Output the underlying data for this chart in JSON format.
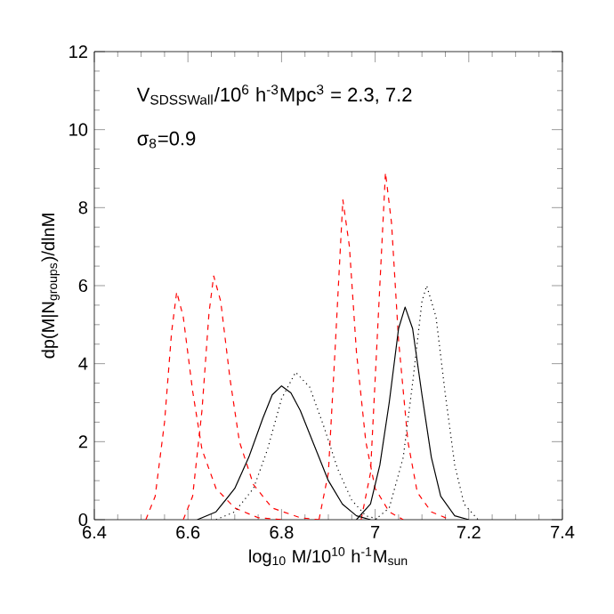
{
  "chart_data": {
    "type": "line",
    "xlabel": "log$_{10}$ M/10$^{10}$ h$^{-1}$M$_{sun}$",
    "ylabel": "dp(M|N$_{groups}$)/dlnM",
    "annotations": [
      "V$_{SDSSWall}$/10$^{6}$ h$^{-3}$Mpc$^{3}$ = 2.3,      7.2",
      "σ$_{8}$=0.9"
    ],
    "xlim": [
      6.4,
      7.4
    ],
    "ylim": [
      0,
      12
    ],
    "xticks": [
      6.4,
      6.6,
      6.8,
      7,
      7.2,
      7.4
    ],
    "yticks": [
      0,
      2,
      4,
      6,
      8,
      10,
      12
    ],
    "grid": false,
    "marker": "none",
    "series": [
      {
        "color": "#ff0000",
        "line_style": "dashed",
        "x": [
          6.51,
          6.53,
          6.55,
          6.565,
          6.576,
          6.59,
          6.61,
          6.63,
          6.66,
          6.7,
          6.75,
          6.8
        ],
        "values": [
          0,
          0.6,
          2.5,
          4.8,
          5.84,
          5.2,
          3.3,
          1.8,
          0.8,
          0.3,
          0.05,
          0
        ]
      },
      {
        "color": "#ff0000",
        "line_style": "dashed",
        "x": [
          6.59,
          6.61,
          6.63,
          6.645,
          6.655,
          6.67,
          6.69,
          6.71,
          6.74,
          6.78,
          6.84,
          6.88
        ],
        "values": [
          0,
          0.6,
          2.8,
          5.3,
          6.25,
          5.6,
          3.6,
          2.0,
          0.9,
          0.3,
          0.05,
          0
        ]
      },
      {
        "color": "#ff0000",
        "line_style": "dashed",
        "x": [
          6.88,
          6.9,
          6.915,
          6.931,
          6.945,
          6.96,
          6.98,
          7.0,
          7.03,
          7.06
        ],
        "values": [
          0,
          1.2,
          4.5,
          8.2,
          7.0,
          4.3,
          2.0,
          0.8,
          0.2,
          0
        ]
      },
      {
        "color": "#ff0000",
        "line_style": "dashed",
        "x": [
          6.97,
          6.99,
          7.005,
          7.022,
          7.035,
          7.05,
          7.07,
          7.09,
          7.12,
          7.16
        ],
        "values": [
          0,
          1.2,
          4.8,
          8.9,
          7.6,
          4.6,
          2.0,
          0.7,
          0.2,
          0
        ]
      },
      {
        "color": "#000000",
        "line_style": "solid",
        "x": [
          6.62,
          6.66,
          6.7,
          6.73,
          6.76,
          6.78,
          6.8,
          6.82,
          6.84,
          6.87,
          6.9,
          6.93,
          6.96,
          6.99
        ],
        "values": [
          0,
          0.2,
          0.8,
          1.6,
          2.6,
          3.2,
          3.43,
          3.25,
          2.8,
          1.9,
          1.0,
          0.4,
          0.1,
          0
        ]
      },
      {
        "color": "#000000",
        "line_style": "solid",
        "x": [
          6.96,
          6.99,
          7.01,
          7.03,
          7.05,
          7.064,
          7.08,
          7.1,
          7.12,
          7.14,
          7.17,
          7.2
        ],
        "values": [
          0,
          0.4,
          1.4,
          3.0,
          4.9,
          5.45,
          4.9,
          3.2,
          1.6,
          0.6,
          0.1,
          0
        ]
      },
      {
        "color": "#000000",
        "line_style": "dotted",
        "x": [
          6.66,
          6.7,
          6.74,
          6.77,
          6.8,
          6.83,
          6.86,
          6.89,
          6.92,
          6.95,
          6.98,
          7.01
        ],
        "values": [
          0,
          0.2,
          0.8,
          1.8,
          3.1,
          3.78,
          3.4,
          2.4,
          1.3,
          0.5,
          0.1,
          0
        ]
      },
      {
        "color": "#000000",
        "line_style": "dotted",
        "x": [
          7.0,
          7.03,
          7.06,
          7.08,
          7.1,
          7.11,
          7.13,
          7.15,
          7.17,
          7.19,
          7.22
        ],
        "values": [
          0,
          0.3,
          1.6,
          3.5,
          5.6,
          6.0,
          5.2,
          3.2,
          1.4,
          0.4,
          0
        ]
      }
    ]
  }
}
